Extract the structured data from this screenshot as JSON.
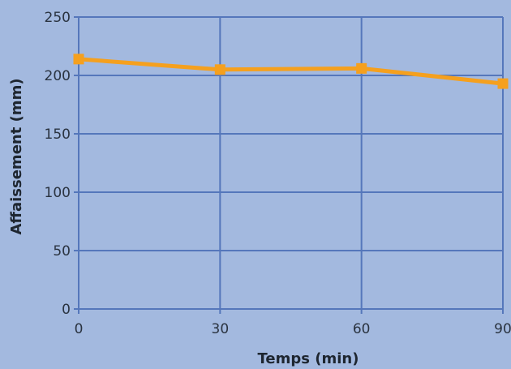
{
  "chart_data": {
    "type": "line",
    "title": "",
    "xlabel": "Temps (min)",
    "ylabel": "Affaissement (mm)",
    "x": [
      0,
      30,
      60,
      90
    ],
    "x_ticks": [
      0,
      30,
      60,
      90
    ],
    "y_ticks": [
      0,
      50,
      100,
      150,
      200,
      250
    ],
    "xlim": [
      0,
      90
    ],
    "ylim": [
      0,
      250
    ],
    "grid": true,
    "legend": "none",
    "series": [
      {
        "name": "",
        "values": [
          214,
          205,
          206,
          193
        ]
      }
    ]
  },
  "colors": {
    "background": "#a3b9df",
    "grid": "#5577bb",
    "series": "#f5a01e",
    "text": "#2a3340"
  }
}
